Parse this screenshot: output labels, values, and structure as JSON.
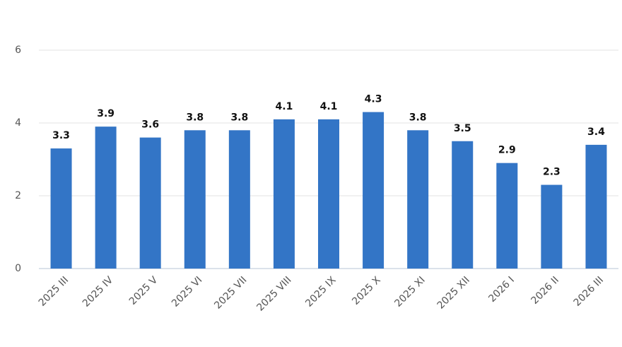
{
  "chart_data": {
    "type": "bar",
    "categories": [
      "2025 III",
      "2025 IV",
      "2025 V",
      "2025 VI",
      "2025 VII",
      "2025 VIII",
      "2025 IX",
      "2025 X",
      "2025 XI",
      "2025 XII",
      "2026 I",
      "2026 II",
      "2026 III"
    ],
    "values": [
      3.3,
      3.9,
      3.6,
      3.8,
      3.8,
      4.1,
      4.1,
      4.3,
      3.8,
      3.5,
      2.9,
      2.3,
      3.4
    ],
    "color": "#3375c6",
    "ylim": [
      0,
      6
    ],
    "yticks": [
      0,
      2,
      4,
      6
    ],
    "grid": true
  }
}
